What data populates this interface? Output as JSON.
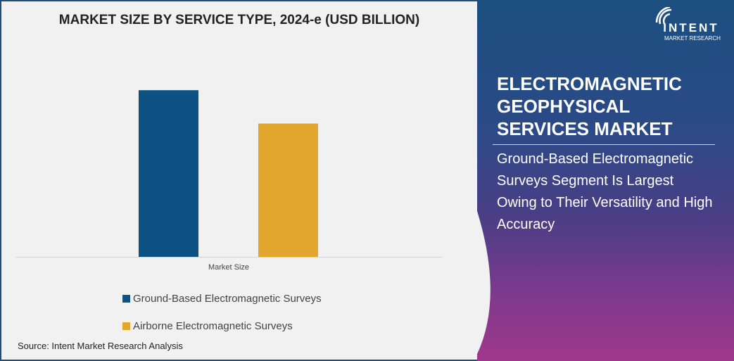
{
  "chart_data": {
    "type": "bar",
    "title": "MARKET SIZE BY SERVICE TYPE, 2024-e (USD BILLION)",
    "categories": [
      "Market Size"
    ],
    "series": [
      {
        "name": "Ground-Based Electromagnetic Surveys",
        "values": [
          1.0
        ],
        "color": "#0d5282"
      },
      {
        "name": "Airborne Electromagnetic Surveys",
        "values": [
          0.8
        ],
        "color": "#e3a62f"
      }
    ],
    "xlabel": "",
    "ylabel": "",
    "ylim": [
      0,
      1.33
    ],
    "grid": false,
    "legend": "bottom"
  },
  "source": "Source: Intent Market Research Analysis",
  "panel": {
    "title_lines": [
      "ELECTROMAGNETIC",
      "GEOPHYSICAL",
      "SERVICES MARKET"
    ],
    "subtitle": "Ground-Based Electromagnetic Surveys Segment Is Largest Owing to Their Versatility and High Accuracy"
  },
  "logo": {
    "name": "INTENT",
    "tagline": "MARKET RESEARCH",
    "tm": "TM"
  }
}
